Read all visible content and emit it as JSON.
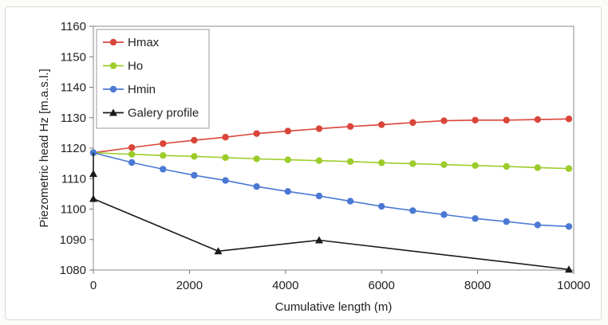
{
  "chart_data": {
    "type": "line",
    "xlabel": "Cumulative length (m)",
    "ylabel": "Piezometric head Hz [m.a.s.l.]",
    "xlim": [
      0,
      10000
    ],
    "ylim": [
      1080,
      1160
    ],
    "xticks": [
      0,
      2000,
      4000,
      6000,
      8000,
      10000
    ],
    "yticks": [
      1080,
      1090,
      1100,
      1110,
      1120,
      1130,
      1140,
      1150,
      1160
    ],
    "grid": false,
    "legend_position": "top-left",
    "series": [
      {
        "name": "Hmax",
        "color": "#d9453a",
        "marker": "circle",
        "x": [
          0,
          800,
          1450,
          2100,
          2750,
          3400,
          4050,
          4700,
          5350,
          6000,
          6650,
          7300,
          7950,
          8600,
          9250,
          9900
        ],
        "y": [
          1118.5,
          1120.2,
          1121.5,
          1122.6,
          1123.6,
          1124.8,
          1125.6,
          1126.4,
          1127.1,
          1127.7,
          1128.4,
          1129.0,
          1129.2,
          1129.2,
          1129.4,
          1129.6
        ]
      },
      {
        "name": "Ho",
        "color": "#9ccc2a",
        "marker": "circle",
        "x": [
          0,
          800,
          1450,
          2100,
          2750,
          3400,
          4050,
          4700,
          5350,
          6000,
          6650,
          7300,
          7950,
          8600,
          9250,
          9900
        ],
        "y": [
          1118.5,
          1118.0,
          1117.6,
          1117.3,
          1116.9,
          1116.5,
          1116.2,
          1115.9,
          1115.6,
          1115.2,
          1114.9,
          1114.6,
          1114.3,
          1114.0,
          1113.6,
          1113.3
        ]
      },
      {
        "name": "Hmin",
        "color": "#4a78d4",
        "marker": "circle",
        "x": [
          0,
          800,
          1450,
          2100,
          2750,
          3400,
          4050,
          4700,
          5350,
          6000,
          6650,
          7300,
          7950,
          8600,
          9250,
          9900
        ],
        "y": [
          1118.5,
          1115.3,
          1113.1,
          1111.1,
          1109.4,
          1107.4,
          1105.8,
          1104.3,
          1102.6,
          1100.9,
          1099.5,
          1098.2,
          1096.9,
          1095.9,
          1094.8,
          1094.3
        ]
      },
      {
        "name": "Galery profile",
        "color": "#1a1a1a",
        "marker": "triangle",
        "x": [
          0,
          0,
          0,
          2600,
          4700,
          9900
        ],
        "y": [
          1118.5,
          1111.6,
          1103.4,
          1086.2,
          1089.8,
          1080.2
        ]
      }
    ]
  }
}
